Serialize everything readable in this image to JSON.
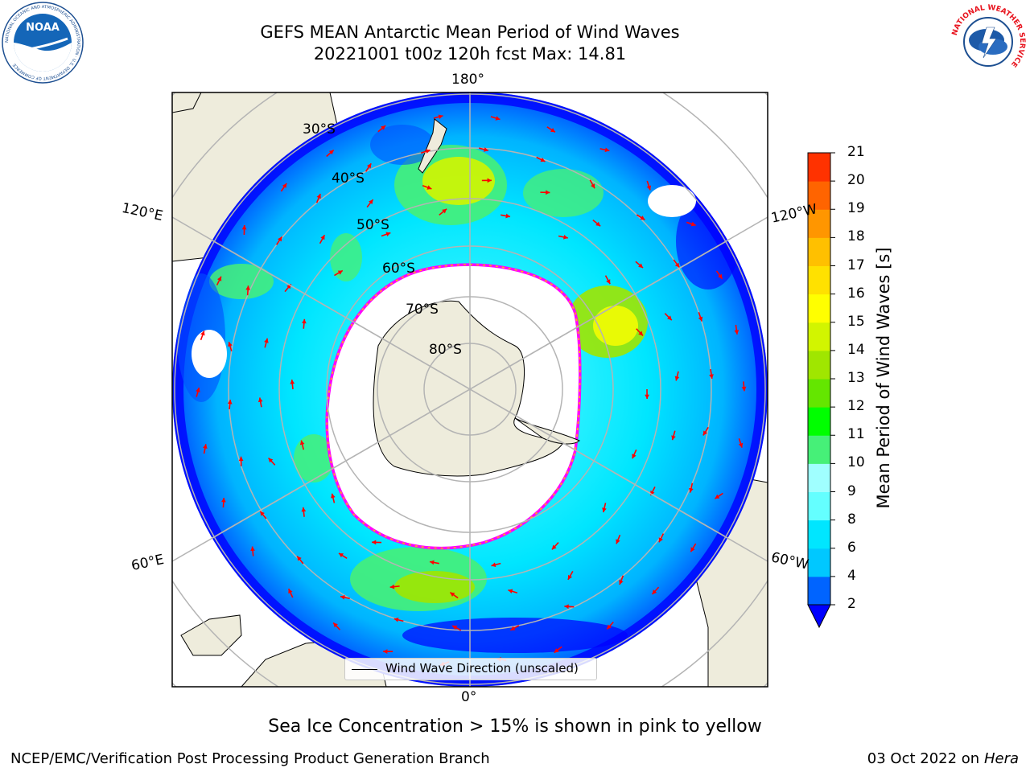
{
  "title": {
    "line1": "GEFS MEAN Antarctic Mean Period of Wind Waves",
    "line2": "20221001 t00z 120h fcst   Max: 14.81"
  },
  "logos": {
    "left": {
      "icon": "noaa-logo",
      "text": "NOAA",
      "ring_text": "NATIONAL OCEANIC AND ATMOSPHERIC ADMINISTRATION · U.S. DEPARTMENT OF COMMERCE"
    },
    "right": {
      "icon": "national-weather-service-logo",
      "ring_text": "NATIONAL WEATHER SERVICE"
    }
  },
  "map": {
    "projection": "south-polar stereographic",
    "longitude_labels": [
      "180°",
      "120°E",
      "120°W",
      "60°E",
      "60°W",
      "0°"
    ],
    "latitude_labels": [
      "30°S",
      "40°S",
      "50°S",
      "60°S",
      "70°S",
      "80°S"
    ],
    "legend": {
      "label": "Wind Wave Direction (unscaled)"
    },
    "colors": {
      "land": "#eeecdc",
      "arrows": "#ff0000",
      "graticule": "#b4b4b4",
      "sea_ice": [
        "#ff00ff",
        "#ffc000"
      ]
    }
  },
  "colorbar": {
    "label": "Mean Period of Wind Waves [s]",
    "ticks": [
      "2",
      "4",
      "6",
      "8",
      "9",
      "10",
      "11",
      "12",
      "13",
      "14",
      "15",
      "16",
      "17",
      "18",
      "19",
      "20",
      "21"
    ],
    "colors": [
      "#0064ff",
      "#00c8ff",
      "#00e6ff",
      "#64ffff",
      "#a0ffff",
      "#46f078",
      "#00ff00",
      "#64e600",
      "#a0e600",
      "#d2f500",
      "#ffff00",
      "#ffe100",
      "#ffc000",
      "#ff9600",
      "#ff6400",
      "#ff3200"
    ],
    "extend_below_color": "#0000ff"
  },
  "footer": {
    "note": "Sea Ice Concentration > 15% is shown in pink to yellow",
    "left": "NCEP/EMC/Verification Post Processing Product Generation Branch",
    "date": "03 Oct 2022",
    "on": "on",
    "machine": "Hera"
  }
}
